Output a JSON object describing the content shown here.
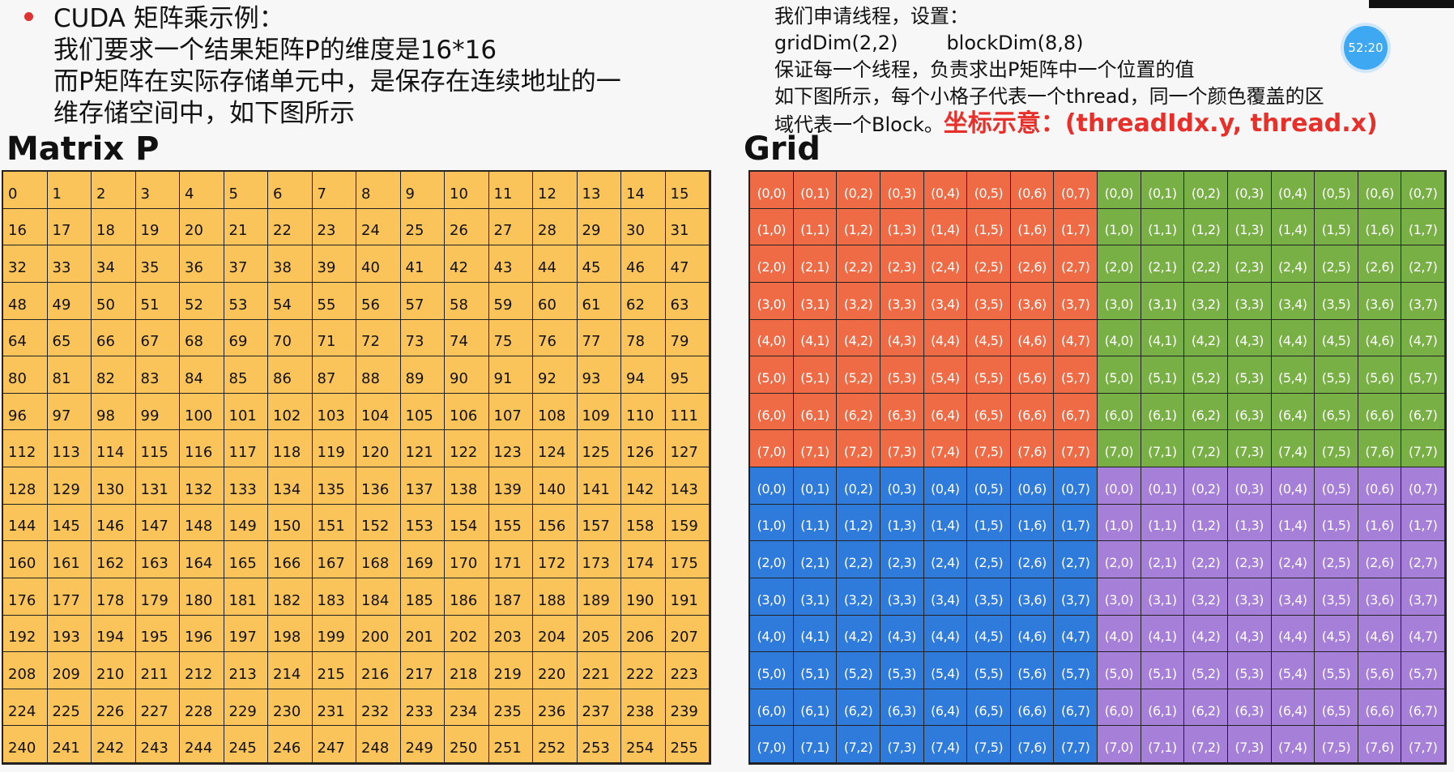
{
  "left_text": {
    "lines": [
      "CUDA 矩阵乘示例：",
      "我们要求一个结果矩阵P的维度是16*16",
      "而P矩阵在实际存储单元中，是保存在连续地址的一",
      "维存储空间中，如下图所示"
    ]
  },
  "right_text": {
    "line1": "我们申请线程，设置：",
    "grid_dim": "gridDim(2,2)",
    "block_dim": "blockDim(8,8)",
    "line3": "保证每一个线程，负责求出P矩阵中一个位置的值",
    "line4": "如下图所示，每个小格子代表一个thread，同一个颜色覆盖的区",
    "line5": "域代表一个Block。",
    "highlight": "坐标示意：(threadIdx.y, thread.x)"
  },
  "matrix_title": "Matrix P",
  "grid_title": "Grid",
  "timer": "52:20",
  "matrix": {
    "rows": 16,
    "cols": 16,
    "color": "#fac45b"
  },
  "grid": {
    "rows": 16,
    "cols": 16,
    "block_size": 8,
    "block_colors": [
      "#ee6b45",
      "#79b046",
      "#2f7bdc",
      "#a67fd8"
    ]
  }
}
